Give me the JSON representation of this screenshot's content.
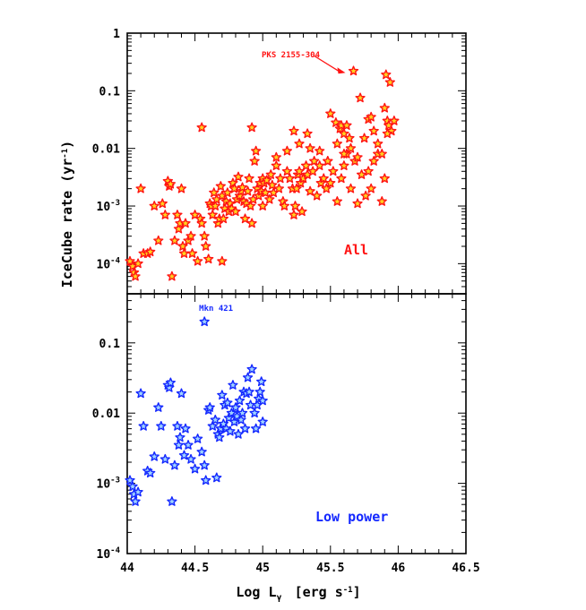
{
  "chart_data": [
    {
      "type": "scatter",
      "marker": "star",
      "panel": "top",
      "panel_label": "All",
      "ylabel": "IceCube rate (yr-1)",
      "ylabel_main": "IceCube rate (yr",
      "ylabel_sup": "-1",
      "ylabel_close": ")",
      "xlim": [
        44,
        46.5
      ],
      "ylim": [
        3e-05,
        1
      ],
      "yscale": "log",
      "ytick_labels": [
        {
          "value": 1,
          "main": "1",
          "sup": ""
        },
        {
          "value": 0.1,
          "main": "0.1",
          "sup": ""
        },
        {
          "value": 0.01,
          "main": "0.01",
          "sup": ""
        },
        {
          "value": 0.001,
          "main": "10",
          "sup": "-3"
        },
        {
          "value": 0.0001,
          "main": "10",
          "sup": "-4"
        }
      ],
      "marker_fill": "#ffd21f",
      "marker_stroke": "#ff1414",
      "label_color": "#ff1414",
      "annotation": {
        "text": "PKS 2155-304",
        "x": 45.67,
        "y": 0.22
      },
      "points": [
        [
          44.02,
          0.00011
        ],
        [
          44.04,
          9e-05
        ],
        [
          44.05,
          7e-05
        ],
        [
          44.06,
          6e-05
        ],
        [
          44.08,
          0.0001
        ],
        [
          44.1,
          0.002
        ],
        [
          44.12,
          0.00015
        ],
        [
          44.15,
          0.00015
        ],
        [
          44.17,
          0.00016
        ],
        [
          44.2,
          0.001
        ],
        [
          44.23,
          0.00025
        ],
        [
          44.26,
          0.0011
        ],
        [
          44.28,
          0.0007
        ],
        [
          44.3,
          0.0027
        ],
        [
          44.31,
          0.0022
        ],
        [
          44.32,
          0.0024
        ],
        [
          44.33,
          6e-05
        ],
        [
          44.35,
          0.00025
        ],
        [
          44.37,
          0.0007
        ],
        [
          44.38,
          0.0004
        ],
        [
          44.39,
          0.0005
        ],
        [
          44.4,
          0.002
        ],
        [
          44.41,
          0.0002
        ],
        [
          44.42,
          0.00015
        ],
        [
          44.43,
          0.0005
        ],
        [
          44.45,
          0.00025
        ],
        [
          44.47,
          0.0003
        ],
        [
          44.48,
          0.00015
        ],
        [
          44.5,
          0.0007
        ],
        [
          44.52,
          0.00011
        ],
        [
          44.54,
          0.0006
        ],
        [
          44.55,
          0.0005
        ],
        [
          44.57,
          0.0003
        ],
        [
          44.58,
          0.0002
        ],
        [
          44.6,
          0.00012
        ],
        [
          44.61,
          0.0011
        ],
        [
          44.62,
          0.001
        ],
        [
          44.63,
          0.0007
        ],
        [
          44.64,
          0.0017
        ],
        [
          44.65,
          0.001
        ],
        [
          44.66,
          0.0013
        ],
        [
          44.67,
          0.0005
        ],
        [
          44.68,
          0.0006
        ],
        [
          44.69,
          0.0022
        ],
        [
          44.7,
          0.0015
        ],
        [
          44.7,
          0.00011
        ],
        [
          44.71,
          0.0006
        ],
        [
          44.72,
          0.0009
        ],
        [
          44.73,
          0.0012
        ],
        [
          44.74,
          0.0017
        ],
        [
          44.75,
          0.0008
        ],
        [
          44.76,
          0.0011
        ],
        [
          44.77,
          0.0009
        ],
        [
          44.78,
          0.0025
        ],
        [
          44.79,
          0.002
        ],
        [
          44.8,
          0.0008
        ],
        [
          44.81,
          0.0013
        ],
        [
          44.82,
          0.0032
        ],
        [
          44.83,
          0.0015
        ],
        [
          44.84,
          0.0018
        ],
        [
          44.85,
          0.0021
        ],
        [
          44.86,
          0.0012
        ],
        [
          44.87,
          0.0006
        ],
        [
          44.88,
          0.0011
        ],
        [
          44.89,
          0.0018
        ],
        [
          44.9,
          0.003
        ],
        [
          44.91,
          0.001
        ],
        [
          44.92,
          0.0005
        ],
        [
          44.93,
          0.0013
        ],
        [
          44.94,
          0.006
        ],
        [
          44.95,
          0.009
        ],
        [
          44.96,
          0.002
        ],
        [
          44.97,
          0.0015
        ],
        [
          44.98,
          0.0025
        ],
        [
          44.99,
          0.0018
        ],
        [
          45,
          0.003
        ],
        [
          45,
          0.001
        ],
        [
          45.01,
          0.0025
        ],
        [
          45.02,
          0.0017
        ],
        [
          45.03,
          0.0028
        ],
        [
          45.05,
          0.0013
        ],
        [
          45.06,
          0.0035
        ],
        [
          45.07,
          0.0023
        ],
        [
          45.08,
          0.0017
        ],
        [
          45.1,
          0.005
        ],
        [
          45.12,
          0.002
        ],
        [
          45.13,
          0.003
        ],
        [
          45.15,
          0.0012
        ],
        [
          45.16,
          0.001
        ],
        [
          45.18,
          0.004
        ],
        [
          45.2,
          0.003
        ],
        [
          45.22,
          0.002
        ],
        [
          45.23,
          0.0007
        ],
        [
          45.24,
          0.001
        ],
        [
          45.25,
          0.002
        ],
        [
          45.26,
          0.0035
        ],
        [
          45.27,
          0.004
        ],
        [
          45.28,
          0.0025
        ],
        [
          45.29,
          0.0008
        ],
        [
          45.3,
          0.003
        ],
        [
          45.32,
          0.005
        ],
        [
          45.33,
          0.0035
        ],
        [
          45.35,
          0.0018
        ],
        [
          45.37,
          0.004
        ],
        [
          45.38,
          0.006
        ],
        [
          45.4,
          0.0015
        ],
        [
          45.42,
          0.005
        ],
        [
          45.43,
          0.0025
        ],
        [
          45.45,
          0.003
        ],
        [
          45.47,
          0.002
        ],
        [
          45.48,
          0.006
        ],
        [
          45.5,
          0.0025
        ],
        [
          45.52,
          0.004
        ],
        [
          45.55,
          0.0012
        ],
        [
          45.58,
          0.003
        ],
        [
          45.6,
          0.005
        ],
        [
          45.62,
          0.008
        ],
        [
          45.65,
          0.002
        ],
        [
          45.68,
          0.006
        ],
        [
          45.7,
          0.0011
        ],
        [
          45.73,
          0.0035
        ],
        [
          45.76,
          0.0015
        ],
        [
          45.78,
          0.004
        ],
        [
          45.8,
          0.002
        ],
        [
          45.82,
          0.006
        ],
        [
          45.85,
          0.008
        ],
        [
          45.88,
          0.0012
        ],
        [
          45.9,
          0.003
        ],
        [
          45.5,
          0.04
        ],
        [
          45.54,
          0.028
        ],
        [
          45.57,
          0.022
        ],
        [
          45.58,
          0.025
        ],
        [
          45.6,
          0.018
        ],
        [
          45.62,
          0.025
        ],
        [
          45.64,
          0.015
        ],
        [
          45.55,
          0.012
        ],
        [
          45.6,
          0.008
        ],
        [
          45.65,
          0.01
        ],
        [
          45.7,
          0.007
        ],
        [
          45.72,
          0.075
        ],
        [
          45.75,
          0.015
        ],
        [
          45.78,
          0.032
        ],
        [
          45.8,
          0.035
        ],
        [
          45.82,
          0.02
        ],
        [
          45.85,
          0.012
        ],
        [
          45.88,
          0.008
        ],
        [
          45.9,
          0.05
        ],
        [
          45.92,
          0.03
        ],
        [
          45.93,
          0.025
        ],
        [
          45.95,
          0.02
        ],
        [
          45.97,
          0.03
        ],
        [
          45.92,
          0.018
        ],
        [
          45.91,
          0.19
        ],
        [
          45.94,
          0.14
        ],
        [
          44.92,
          0.023
        ],
        [
          45.23,
          0.02
        ],
        [
          45.33,
          0.018
        ],
        [
          45.18,
          0.009
        ],
        [
          45.1,
          0.007
        ],
        [
          45.27,
          0.012
        ],
        [
          44.55,
          0.023
        ],
        [
          45.67,
          0.22
        ],
        [
          45.42,
          0.009
        ],
        [
          45.48,
          0.006
        ],
        [
          45.35,
          0.01
        ]
      ]
    },
    {
      "type": "scatter",
      "marker": "star",
      "panel": "bottom",
      "panel_label": "Low power",
      "xlabel": "Log Lγ [erg s-1]",
      "xlabel_main": "Log L",
      "xlabel_sub": "γ",
      "xlabel_unit": "[erg s",
      "xlabel_sup": "-1",
      "xlabel_close": "]",
      "xlim": [
        44,
        46.5
      ],
      "ylim": [
        0.0001,
        0.5
      ],
      "yscale": "log",
      "xtick_labels": [
        "44",
        "44.5",
        "45",
        "45.5",
        "46",
        "46.5"
      ],
      "xtick_values": [
        44,
        44.5,
        45,
        45.5,
        46,
        46.5
      ],
      "ytick_labels": [
        {
          "value": 0.1,
          "main": "0.1",
          "sup": ""
        },
        {
          "value": 0.01,
          "main": "0.01",
          "sup": ""
        },
        {
          "value": 0.001,
          "main": "10",
          "sup": "-3"
        },
        {
          "value": 0.0001,
          "main": "10",
          "sup": "-4"
        }
      ],
      "marker_fill": "#9fd2ff",
      "marker_stroke": "#1428ff",
      "label_color": "#1428ff",
      "annotation": {
        "text": "Mkn 421",
        "x": 44.57,
        "y": 0.2
      },
      "points": [
        [
          44.02,
          0.0011
        ],
        [
          44.04,
          0.0009
        ],
        [
          44.05,
          0.0007
        ],
        [
          44.06,
          0.00055
        ],
        [
          44.08,
          0.00075
        ],
        [
          44.1,
          0.019
        ],
        [
          44.12,
          0.0065
        ],
        [
          44.15,
          0.0015
        ],
        [
          44.17,
          0.0014
        ],
        [
          44.2,
          0.0024
        ],
        [
          44.23,
          0.012
        ],
        [
          44.25,
          0.0065
        ],
        [
          44.28,
          0.0022
        ],
        [
          44.3,
          0.025
        ],
        [
          44.31,
          0.023
        ],
        [
          44.32,
          0.027
        ],
        [
          44.33,
          0.00055
        ],
        [
          44.35,
          0.0018
        ],
        [
          44.37,
          0.0065
        ],
        [
          44.38,
          0.0035
        ],
        [
          44.39,
          0.0045
        ],
        [
          44.4,
          0.019
        ],
        [
          44.42,
          0.0025
        ],
        [
          44.43,
          0.006
        ],
        [
          44.45,
          0.0035
        ],
        [
          44.47,
          0.0022
        ],
        [
          44.5,
          0.0016
        ],
        [
          44.52,
          0.0043
        ],
        [
          44.55,
          0.0028
        ],
        [
          44.57,
          0.0018
        ],
        [
          44.58,
          0.0011
        ],
        [
          44.6,
          0.011
        ],
        [
          44.61,
          0.012
        ],
        [
          44.63,
          0.0065
        ],
        [
          44.65,
          0.008
        ],
        [
          44.66,
          0.0012
        ],
        [
          44.67,
          0.005
        ],
        [
          44.68,
          0.0045
        ],
        [
          44.69,
          0.006
        ],
        [
          44.7,
          0.018
        ],
        [
          44.71,
          0.007
        ],
        [
          44.72,
          0.013
        ],
        [
          44.73,
          0.006
        ],
        [
          44.74,
          0.014
        ],
        [
          44.75,
          0.0085
        ],
        [
          44.76,
          0.0055
        ],
        [
          44.77,
          0.01
        ],
        [
          44.78,
          0.025
        ],
        [
          44.79,
          0.0075
        ],
        [
          44.8,
          0.012
        ],
        [
          44.81,
          0.009
        ],
        [
          44.82,
          0.005
        ],
        [
          44.83,
          0.015
        ],
        [
          44.84,
          0.008
        ],
        [
          44.85,
          0.01
        ],
        [
          44.86,
          0.02
        ],
        [
          44.87,
          0.006
        ],
        [
          44.88,
          0.019
        ],
        [
          44.89,
          0.032
        ],
        [
          44.9,
          0.02
        ],
        [
          44.91,
          0.013
        ],
        [
          44.92,
          0.042
        ],
        [
          44.94,
          0.01
        ],
        [
          44.95,
          0.006
        ],
        [
          44.96,
          0.013
        ],
        [
          44.97,
          0.016
        ],
        [
          44.98,
          0.02
        ],
        [
          44.99,
          0.028
        ],
        [
          45,
          0.015
        ],
        [
          45,
          0.0075
        ],
        [
          44.57,
          0.2
        ]
      ]
    }
  ]
}
